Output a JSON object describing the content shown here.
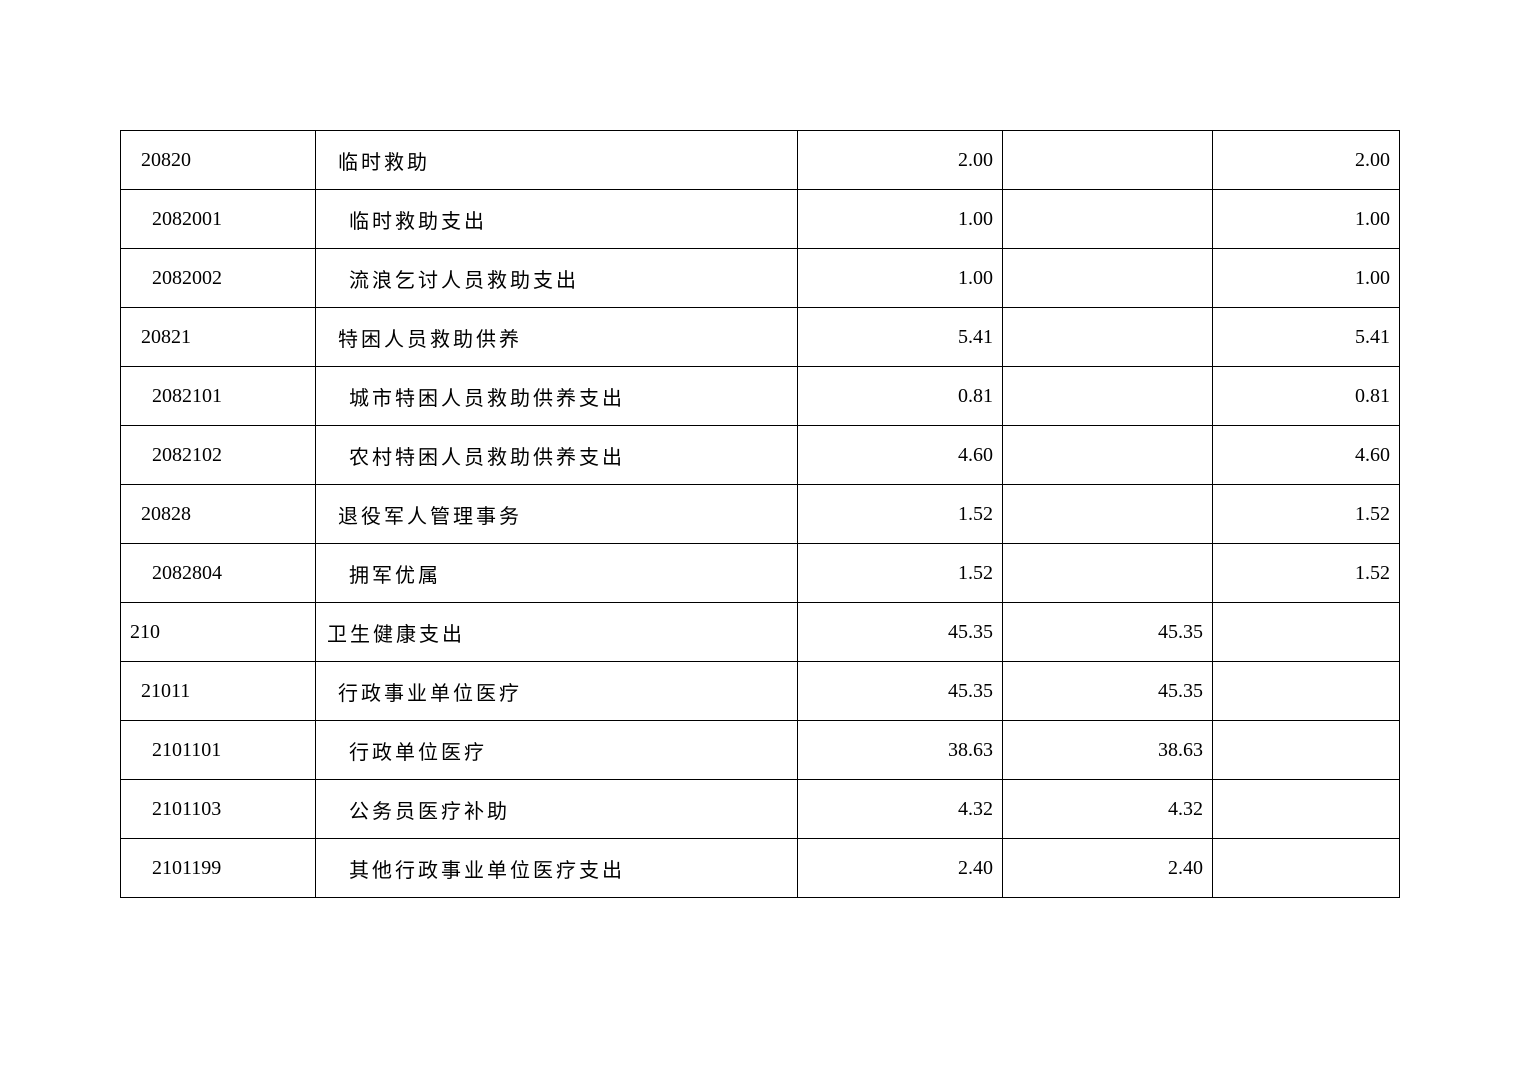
{
  "rows": [
    {
      "level": 1,
      "code": "20820",
      "name": "临时救助",
      "total": "2.00",
      "basic": "",
      "project": "2.00"
    },
    {
      "level": 2,
      "code": "2082001",
      "name": "临时救助支出",
      "total": "1.00",
      "basic": "",
      "project": "1.00"
    },
    {
      "level": 2,
      "code": "2082002",
      "name": "流浪乞讨人员救助支出",
      "total": "1.00",
      "basic": "",
      "project": "1.00"
    },
    {
      "level": 1,
      "code": "20821",
      "name": "特困人员救助供养",
      "total": "5.41",
      "basic": "",
      "project": "5.41"
    },
    {
      "level": 2,
      "code": "2082101",
      "name": "城市特困人员救助供养支出",
      "total": "0.81",
      "basic": "",
      "project": "0.81"
    },
    {
      "level": 2,
      "code": "2082102",
      "name": "农村特困人员救助供养支出",
      "total": "4.60",
      "basic": "",
      "project": "4.60"
    },
    {
      "level": 1,
      "code": "20828",
      "name": "退役军人管理事务",
      "total": "1.52",
      "basic": "",
      "project": "1.52"
    },
    {
      "level": 2,
      "code": "2082804",
      "name": "拥军优属",
      "total": "1.52",
      "basic": "",
      "project": "1.52"
    },
    {
      "level": 0,
      "code": "210",
      "name": "卫生健康支出",
      "total": "45.35",
      "basic": "45.35",
      "project": ""
    },
    {
      "level": 1,
      "code": "21011",
      "name": "行政事业单位医疗",
      "total": "45.35",
      "basic": "45.35",
      "project": ""
    },
    {
      "level": 2,
      "code": "2101101",
      "name": "行政单位医疗",
      "total": "38.63",
      "basic": "38.63",
      "project": ""
    },
    {
      "level": 2,
      "code": "2101103",
      "name": "公务员医疗补助",
      "total": "4.32",
      "basic": "4.32",
      "project": ""
    },
    {
      "level": 2,
      "code": "2101199",
      "name": "其他行政事业单位医疗支出",
      "total": "2.40",
      "basic": "2.40",
      "project": ""
    }
  ]
}
